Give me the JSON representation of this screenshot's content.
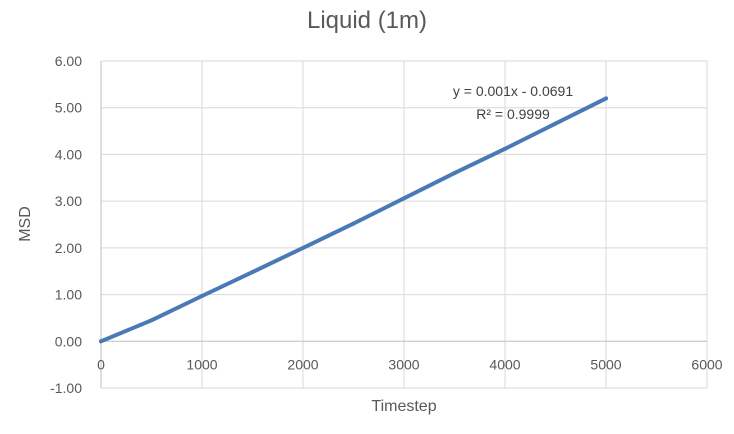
{
  "chart_data": {
    "type": "scatter",
    "title": "Liquid (1m)",
    "xlabel": "Timestep",
    "ylabel": "MSD",
    "xlim": [
      0,
      6000
    ],
    "ylim": [
      -1,
      6
    ],
    "x_ticks": [
      "0",
      "1000",
      "2000",
      "3000",
      "4000",
      "5000",
      "6000"
    ],
    "y_ticks": [
      "-1.00",
      "0.00",
      "1.00",
      "2.00",
      "3.00",
      "4.00",
      "5.00",
      "6.00"
    ],
    "grid": true,
    "legend": "none",
    "series": [
      {
        "color": "#4a7ab5",
        "x": [
          0,
          500,
          1000,
          1500,
          2000,
          2500,
          3000,
          3500,
          4000,
          4500,
          5000
        ],
        "y": [
          0.0,
          0.45,
          0.97,
          1.48,
          2.0,
          2.52,
          3.06,
          3.6,
          4.12,
          4.66,
          5.2
        ]
      }
    ],
    "trendline": {
      "slope": 0.001,
      "intercept": -0.0691,
      "equation": "y = 0.001x - 0.0691",
      "r_squared": "R² = 0.9999"
    }
  }
}
